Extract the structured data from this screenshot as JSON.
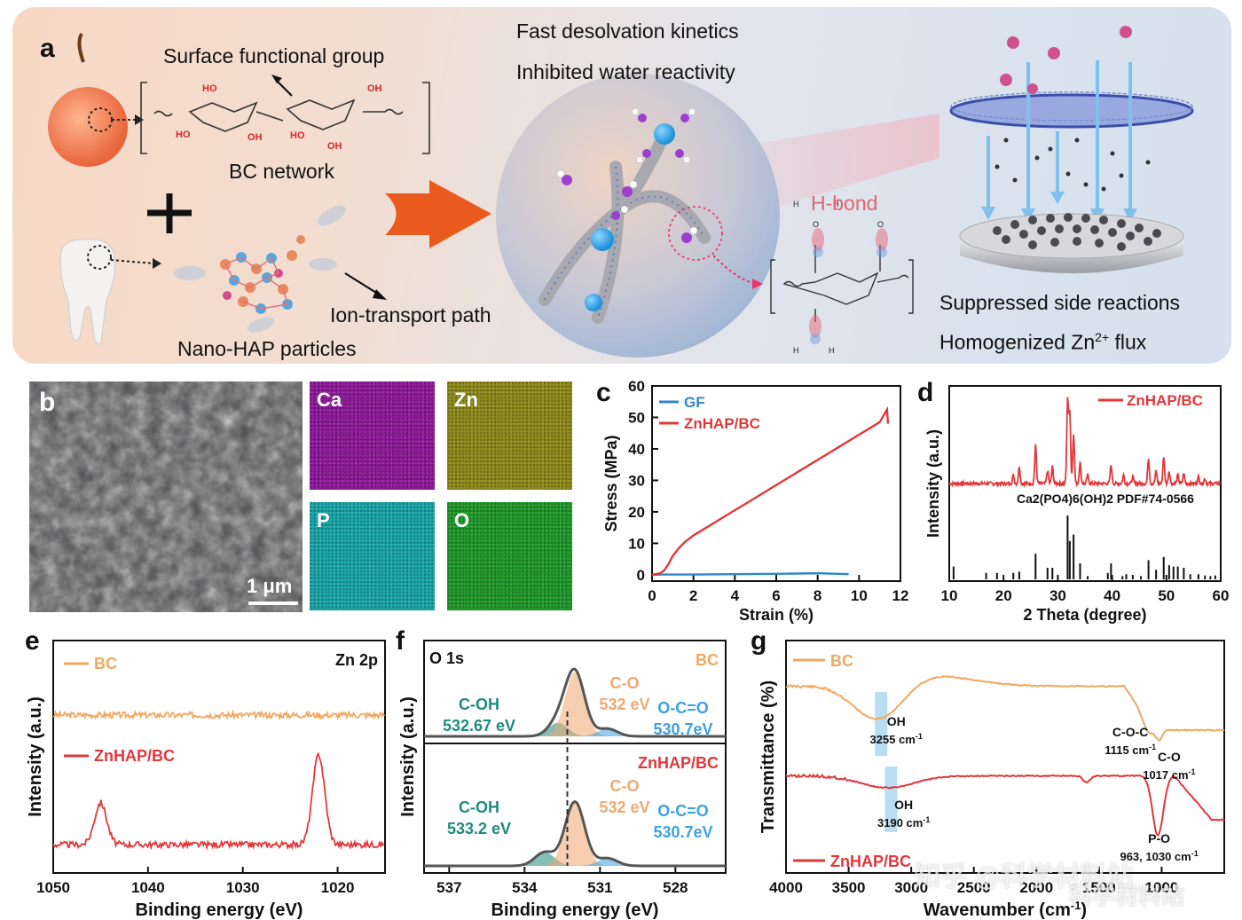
{
  "panel_a": {
    "label": "a",
    "surface_group": "Surface functional group",
    "bc_network": "BC network",
    "plus": "+",
    "nano_hap": "Nano-HAP particles",
    "ion_path": "Ion-transport path",
    "fast_desolvation": "Fast desolvation kinetics",
    "inhibited_water": "Inhibited water reactivity",
    "hbond": "H-bond",
    "suppressed": "Suppressed side reactions",
    "homogenized_pre": "Homogenized Zn",
    "homogenized_sup": "2+",
    "homogenized_post": " flux",
    "oh": "HO",
    "oh2": "OH",
    "h": "H",
    "o": "O"
  },
  "panel_b": {
    "label": "b",
    "scale": "1 μm",
    "maps": [
      "Ca",
      "Zn",
      "P",
      "O"
    ],
    "colors": [
      "#8e1a9a",
      "#8f8a1a",
      "#1aa6a8",
      "#1f9a2a"
    ]
  },
  "chart_data": [
    {
      "panel": "c",
      "type": "line",
      "xlabel": "Strain (%)",
      "ylabel": "Stress (MPa)",
      "xlim": [
        0,
        12
      ],
      "ylim": [
        -2,
        60
      ],
      "xticks": [
        "0",
        "2",
        "4",
        "6",
        "8",
        "10",
        "12"
      ],
      "yticks": [
        "0",
        "10",
        "20",
        "30",
        "40",
        "50",
        "60"
      ],
      "series": [
        {
          "name": "GF",
          "color": "#2f86c8",
          "x": [
            0,
            0.5,
            2,
            4,
            6,
            8,
            9.5
          ],
          "y": [
            0,
            0.1,
            0.1,
            0.2,
            0.3,
            0.5,
            0.2
          ]
        },
        {
          "name": "ZnHAP/BC",
          "color": "#e0383a",
          "x": [
            0,
            0.4,
            0.6,
            0.8,
            1.0,
            1.3,
            1.6,
            2.0,
            3.0,
            4.0,
            5.0,
            6.0,
            7.0,
            8.0,
            9.0,
            10.0,
            11.0,
            11.35,
            11.4
          ],
          "y": [
            0,
            0.5,
            1.5,
            3.5,
            6,
            8.5,
            10.5,
            12.5,
            16.5,
            20.5,
            24.5,
            28.5,
            32.5,
            36.5,
            40.5,
            44.5,
            48.5,
            52.5,
            48
          ]
        }
      ]
    },
    {
      "panel": "d",
      "type": "line",
      "xlabel": "2 Theta (degree)",
      "ylabel": "Intensity (a.u.)",
      "xlim": [
        10,
        60
      ],
      "xticks": [
        "10",
        "20",
        "30",
        "40",
        "50",
        "60"
      ],
      "series": [
        {
          "name": "ZnHAP/BC",
          "color": "#e0383a",
          "peaks": [
            [
              21.8,
              0.1
            ],
            [
              22.9,
              0.2
            ],
            [
              25.9,
              0.45
            ],
            [
              28.1,
              0.15
            ],
            [
              29.0,
              0.2
            ],
            [
              31.8,
              1.0
            ],
            [
              32.2,
              0.85
            ],
            [
              32.9,
              0.6
            ],
            [
              34.1,
              0.25
            ],
            [
              35.5,
              0.1
            ],
            [
              39.8,
              0.22
            ],
            [
              42.1,
              0.1
            ],
            [
              43.8,
              0.08
            ],
            [
              46.7,
              0.3
            ],
            [
              48.1,
              0.15
            ],
            [
              49.5,
              0.32
            ],
            [
              50.5,
              0.15
            ],
            [
              52.1,
              0.1
            ],
            [
              53.2,
              0.12
            ],
            [
              55.9,
              0.08
            ],
            [
              57.1,
              0.06
            ]
          ]
        }
      ],
      "reference": {
        "label": "Ca2(PO4)6(OH)2 PDF#74-0566",
        "sticks": [
          [
            10.8,
            0.2
          ],
          [
            16.8,
            0.1
          ],
          [
            18.8,
            0.1
          ],
          [
            21.8,
            0.1
          ],
          [
            22.9,
            0.12
          ],
          [
            25.9,
            0.4
          ],
          [
            28.1,
            0.18
          ],
          [
            29.0,
            0.18
          ],
          [
            31.8,
            1.0
          ],
          [
            32.2,
            0.6
          ],
          [
            32.9,
            0.7
          ],
          [
            34.1,
            0.25
          ],
          [
            35.5,
            0.05
          ],
          [
            39.2,
            0.1
          ],
          [
            39.8,
            0.25
          ],
          [
            41.9,
            0.05
          ],
          [
            42.6,
            0.08
          ],
          [
            43.8,
            0.07
          ],
          [
            45.3,
            0.05
          ],
          [
            46.7,
            0.3
          ],
          [
            48.1,
            0.15
          ],
          [
            49.5,
            0.35
          ],
          [
            50.5,
            0.22
          ],
          [
            51.3,
            0.2
          ],
          [
            52.1,
            0.2
          ],
          [
            53.2,
            0.18
          ],
          [
            54.4,
            0.08
          ],
          [
            55.9,
            0.08
          ],
          [
            57.1,
            0.06
          ],
          [
            58.1,
            0.05
          ],
          [
            59.0,
            0.06
          ]
        ]
      }
    },
    {
      "panel": "e",
      "type": "line",
      "xlabel": "Binding energy (eV)",
      "ylabel": "Intensity (a.u.)",
      "annotation": "Zn 2p",
      "xlim": [
        1050,
        1015
      ],
      "xticks": [
        "1050",
        "1040",
        "1030",
        "1020"
      ],
      "series": [
        {
          "name": "BC",
          "color": "#f0a860",
          "flat": true
        },
        {
          "name": "ZnHAP/BC",
          "color": "#e0383a",
          "peaks": [
            [
              1045,
              0.35
            ],
            [
              1022,
              0.75
            ]
          ]
        }
      ]
    },
    {
      "panel": "f",
      "type": "line",
      "title": "O 1s",
      "xlabel": "Binding energy (eV)",
      "ylabel": "Intensity (a.u.)",
      "xlim": [
        538,
        526
      ],
      "xticks": [
        "537",
        "534",
        "531",
        "528"
      ],
      "series": [
        {
          "name": "BC",
          "color": "#f0a860",
          "components": [
            {
              "name": "C-OH",
              "value": "532.67 eV",
              "color": "#1f8b7a"
            },
            {
              "name": "C-O",
              "value": "532 eV",
              "color": "#f0a870"
            },
            {
              "name": "O-C=O",
              "value": "530.7eV",
              "color": "#3ea0e0"
            }
          ]
        },
        {
          "name": "ZnHAP/BC",
          "color": "#e0383a",
          "components": [
            {
              "name": "C-OH",
              "value": "533.2 eV",
              "color": "#1f8b7a"
            },
            {
              "name": "C-O",
              "value": "532 eV",
              "color": "#f0a870"
            },
            {
              "name": "O-C=O",
              "value": "530.7eV",
              "color": "#3ea0e0"
            }
          ]
        }
      ]
    },
    {
      "panel": "g",
      "type": "line",
      "xlabel": "Wavenumber (cm",
      "xlabel_sup": "-1",
      "xlabel_end": ")",
      "ylabel": "Transmittance (%)",
      "xlim": [
        4000,
        500
      ],
      "xticks": [
        "4000",
        "3500",
        "3000",
        "2500",
        "2000",
        "1500",
        "1000"
      ],
      "series": [
        {
          "name": "BC",
          "color": "#f0a860"
        },
        {
          "name": "ZnHAP/BC",
          "color": "#e0383a"
        }
      ],
      "annotations": [
        {
          "text": "OH",
          "sub": "3255 cm",
          "sup": "-1"
        },
        {
          "text": "C-O-C",
          "sub": "1115 cm",
          "sup": "-1"
        },
        {
          "text": "C-O",
          "sub": "1017 cm",
          "sup": "-1"
        },
        {
          "text": "OH",
          "sub": "3190 cm",
          "sup": "-1"
        },
        {
          "text": "P-O",
          "sub": "963, 1030 cm",
          "sup": "-1"
        }
      ]
    }
  ],
  "labels": {
    "c": "c",
    "d": "d",
    "e": "e",
    "f": "f",
    "g": "g"
  },
  "watermark": {
    "line1": "知乎 @科学材料站",
    "line2": "科学材料站"
  }
}
